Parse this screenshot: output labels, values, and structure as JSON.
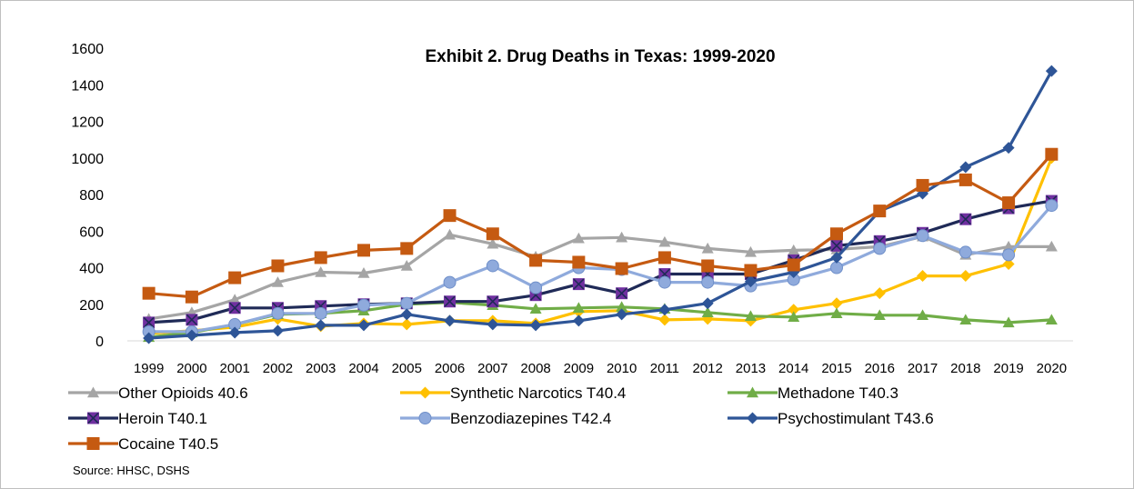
{
  "chart_data": {
    "type": "line",
    "title": "Exhibit 2. Drug Deaths in Texas: 1999-2020",
    "xlabel": "",
    "ylabel": "",
    "ylim": [
      0,
      1600
    ],
    "yticks": [
      0,
      200,
      400,
      600,
      800,
      1000,
      1200,
      1400,
      1600
    ],
    "grid": false,
    "legend_position": "bottom",
    "x": [
      "1999",
      "2000",
      "2001",
      "2002",
      "2003",
      "2004",
      "2005",
      "2006",
      "2007",
      "2008",
      "2009",
      "2010",
      "2011",
      "2012",
      "2013",
      "2014",
      "2015",
      "2016",
      "2017",
      "2018",
      "2019",
      "2020"
    ],
    "series": [
      {
        "name": "Other Opioids  40.6",
        "color": "#a5a5a5",
        "marker": "triangle",
        "values": [
          120,
          155,
          225,
          320,
          375,
          370,
          410,
          580,
          530,
          460,
          560,
          565,
          540,
          505,
          485,
          495,
          500,
          515,
          570,
          470,
          515,
          515
        ]
      },
      {
        "name": "Synthetic Narcotics T40.4",
        "color": "#ffc000",
        "marker": "diamond",
        "values": [
          40,
          55,
          75,
          120,
          80,
          95,
          90,
          110,
          110,
          95,
          160,
          165,
          115,
          120,
          110,
          170,
          205,
          260,
          355,
          355,
          420,
          1000
        ]
      },
      {
        "name": "Methadone T40.3",
        "color": "#70ad47",
        "marker": "triangle",
        "values": [
          20,
          45,
          90,
          145,
          150,
          165,
          200,
          210,
          195,
          175,
          180,
          185,
          175,
          155,
          135,
          130,
          150,
          140,
          140,
          115,
          100,
          115
        ]
      },
      {
        "name": "Heroin T40.1",
        "color": "#1f2a57",
        "marker": "square-x",
        "values": [
          100,
          115,
          180,
          180,
          190,
          200,
          205,
          215,
          215,
          250,
          310,
          260,
          365,
          365,
          365,
          440,
          520,
          545,
          590,
          665,
          725,
          765
        ]
      },
      {
        "name": "Benzodiazepines T42.4",
        "color": "#8faadc",
        "marker": "circle",
        "values": [
          50,
          50,
          90,
          150,
          150,
          195,
          205,
          320,
          410,
          290,
          400,
          390,
          320,
          320,
          300,
          335,
          400,
          505,
          575,
          485,
          470,
          740
        ]
      },
      {
        "name": "Psychostimulant T43.6",
        "color": "#2e5597",
        "marker": "diamond",
        "values": [
          15,
          30,
          45,
          55,
          85,
          85,
          145,
          110,
          90,
          85,
          110,
          145,
          170,
          205,
          325,
          375,
          455,
          710,
          805,
          950,
          1055,
          1475
        ]
      },
      {
        "name": "Cocaine  T40.5",
        "color": "#c55a11",
        "marker": "square",
        "values": [
          260,
          240,
          345,
          410,
          455,
          495,
          505,
          685,
          585,
          440,
          430,
          395,
          455,
          410,
          385,
          415,
          585,
          710,
          850,
          880,
          755,
          1020
        ]
      }
    ],
    "source": "Source: HHSC, DSHS"
  }
}
